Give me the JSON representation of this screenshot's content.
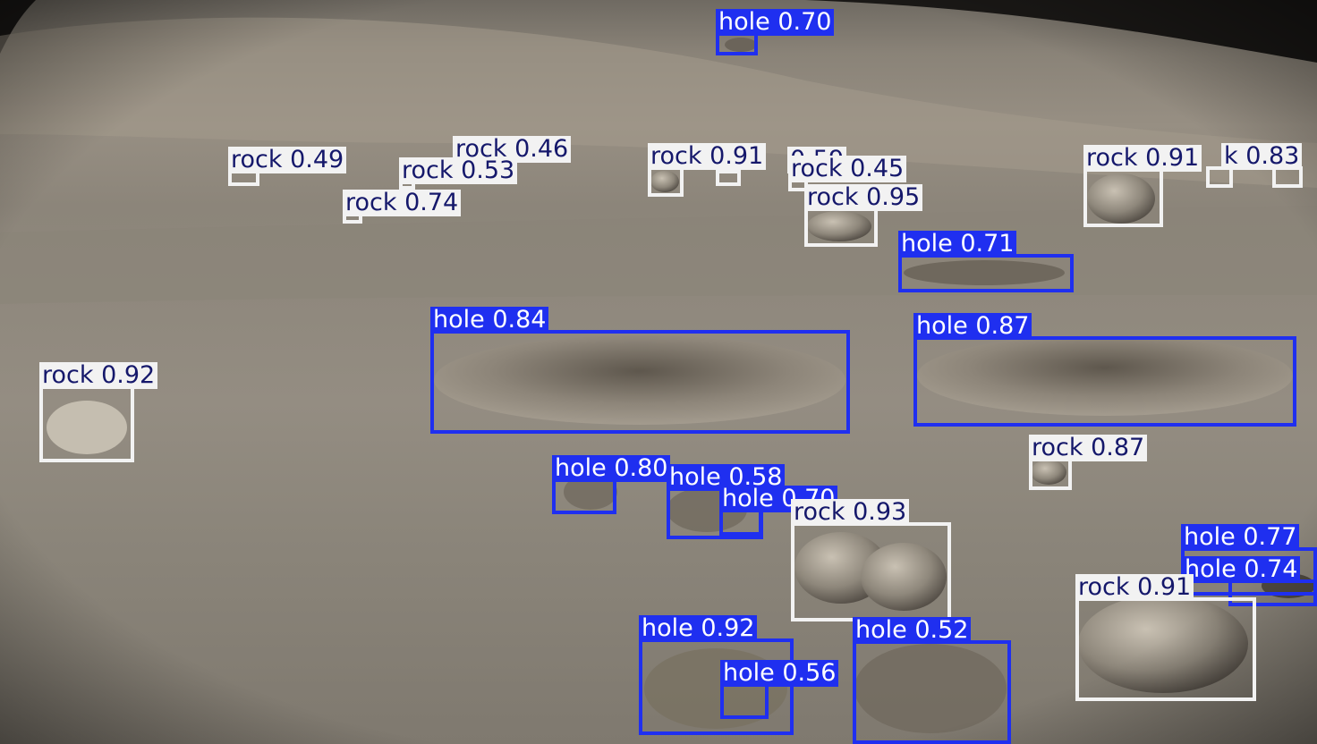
{
  "image": {
    "description_classes": [
      "hole",
      "rock"
    ],
    "colors": {
      "hole": "#1f2ff0",
      "rock": "#f2f2f2",
      "rock_text": "#15186b"
    }
  },
  "detections": [
    {
      "cls": "hole",
      "label": "hole 0.70"
    },
    {
      "cls": "rock",
      "label": "rock 0.49"
    },
    {
      "cls": "rock",
      "label": "rock 0.46"
    },
    {
      "cls": "rock",
      "label": "rock 0.53"
    },
    {
      "cls": "rock",
      "label": "rock 0.74"
    },
    {
      "cls": "rock",
      "label": "rock 0.91"
    },
    {
      "cls": "rock",
      "label": "0.59"
    },
    {
      "cls": "rock",
      "label": "rock 0.45"
    },
    {
      "cls": "rock",
      "label": "rock 0.95"
    },
    {
      "cls": "rock",
      "label": "rock 0.91"
    },
    {
      "cls": "rock",
      "label": "k 0.83"
    },
    {
      "cls": "hole",
      "label": "hole 0.71"
    },
    {
      "cls": "hole",
      "label": "hole 0.84"
    },
    {
      "cls": "hole",
      "label": "hole 0.87"
    },
    {
      "cls": "rock",
      "label": "rock 0.92"
    },
    {
      "cls": "rock",
      "label": "rock 0.87"
    },
    {
      "cls": "hole",
      "label": "hole 0.80"
    },
    {
      "cls": "hole",
      "label": "hole 0.58"
    },
    {
      "cls": "hole",
      "label": "hole 0.70"
    },
    {
      "cls": "rock",
      "label": "rock 0.93"
    },
    {
      "cls": "hole",
      "label": "hole 0.77"
    },
    {
      "cls": "hole",
      "label": "hole 0.74"
    },
    {
      "cls": "rock",
      "label": "rock 0.91"
    },
    {
      "cls": "hole",
      "label": "hole 0.92"
    },
    {
      "cls": "hole",
      "label": "hole 0.56"
    },
    {
      "cls": "hole",
      "label": "hole 0.52"
    }
  ]
}
